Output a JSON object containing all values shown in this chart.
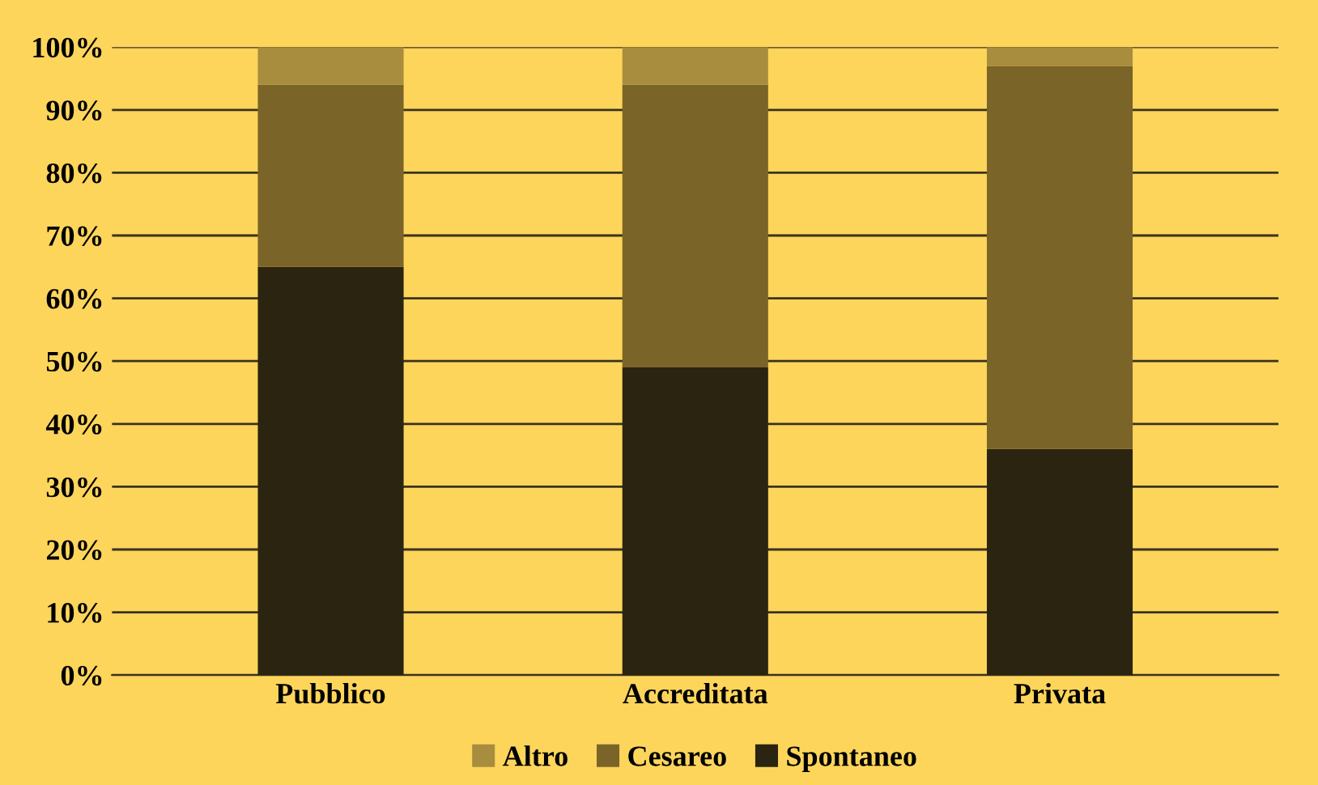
{
  "chart_data": {
    "type": "bar",
    "stacked": true,
    "categories": [
      "Pubblico",
      "Accreditata",
      "Privata"
    ],
    "series": [
      {
        "name": "Spontaneo",
        "color": "#2b2410",
        "values": [
          65,
          49,
          36
        ]
      },
      {
        "name": "Cesareo",
        "color": "#7a6427",
        "values": [
          29,
          45,
          61
        ]
      },
      {
        "name": "Altro",
        "color": "#a88d3e",
        "values": [
          6,
          6,
          3
        ]
      }
    ],
    "ylim": [
      0,
      100
    ],
    "yticks": [
      {
        "value": 0,
        "label": "0%"
      },
      {
        "value": 10,
        "label": "10%"
      },
      {
        "value": 20,
        "label": "20%"
      },
      {
        "value": 30,
        "label": "30%"
      },
      {
        "value": 40,
        "label": "40%"
      },
      {
        "value": 50,
        "label": "50%"
      },
      {
        "value": 60,
        "label": "60%"
      },
      {
        "value": 70,
        "label": "70%"
      },
      {
        "value": 80,
        "label": "80%"
      },
      {
        "value": 90,
        "label": "90%"
      },
      {
        "value": 100,
        "label": "100%"
      }
    ],
    "grid": "y",
    "legend": "bottom"
  }
}
